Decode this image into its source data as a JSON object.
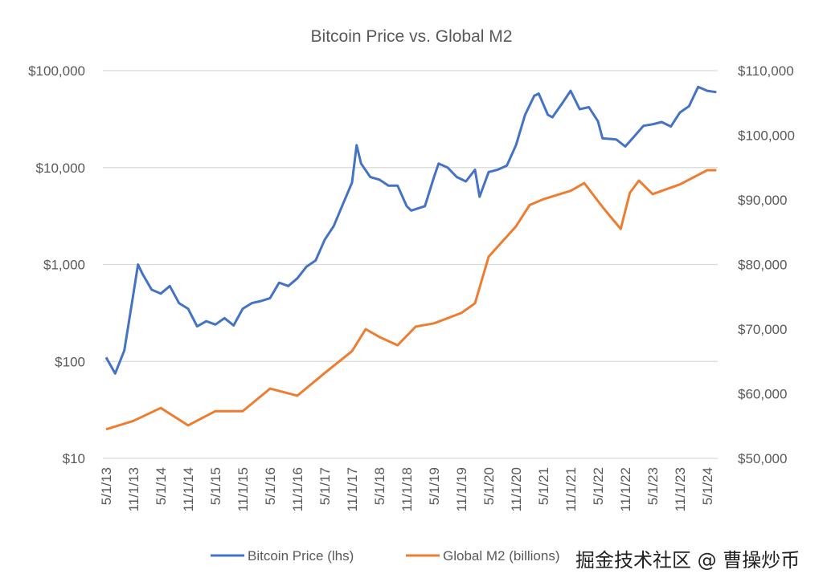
{
  "chart_data": {
    "type": "line",
    "title": "Bitcoin Price vs. Global M2",
    "y_left": {
      "scale": "log",
      "range": [
        10,
        100000
      ],
      "ticks": [
        "$10",
        "$100",
        "$1,000",
        "$10,000",
        "$100,000"
      ],
      "tick_values": [
        10,
        100,
        1000,
        10000,
        100000
      ]
    },
    "y_right": {
      "scale": "linear",
      "range": [
        50000,
        110000
      ],
      "ticks": [
        "$50,000",
        "$60,000",
        "$70,000",
        "$80,000",
        "$90,000",
        "$100,000",
        "$110,000"
      ],
      "tick_values": [
        50000,
        60000,
        70000,
        80000,
        90000,
        100000,
        110000
      ]
    },
    "x_ticks": [
      "5/1/13",
      "11/1/13",
      "5/1/14",
      "11/1/14",
      "5/1/15",
      "11/1/15",
      "5/1/16",
      "11/1/16",
      "5/1/17",
      "11/1/17",
      "5/1/18",
      "11/1/18",
      "5/1/19",
      "11/1/19",
      "5/1/20",
      "11/1/20",
      "5/1/21",
      "11/1/21",
      "5/1/22",
      "11/1/22",
      "5/1/23",
      "11/1/23",
      "5/1/24"
    ],
    "grid": "horizontal",
    "legend": "bottom",
    "series": [
      {
        "name": "Bitcoin Price (lhs)",
        "axis": "left",
        "color": "#4472C4",
        "x": [
          "2013-05",
          "2013-07",
          "2013-09",
          "2013-11",
          "2013-12",
          "2014-01",
          "2014-03",
          "2014-05",
          "2014-07",
          "2014-09",
          "2014-11",
          "2015-01",
          "2015-03",
          "2015-05",
          "2015-07",
          "2015-09",
          "2015-11",
          "2016-01",
          "2016-03",
          "2016-05",
          "2016-07",
          "2016-09",
          "2016-11",
          "2017-01",
          "2017-03",
          "2017-05",
          "2017-07",
          "2017-09",
          "2017-11",
          "2017-12",
          "2018-01",
          "2018-03",
          "2018-05",
          "2018-07",
          "2018-09",
          "2018-11",
          "2018-12",
          "2019-03",
          "2019-05",
          "2019-06",
          "2019-08",
          "2019-10",
          "2019-12",
          "2020-02",
          "2020-03",
          "2020-05",
          "2020-07",
          "2020-09",
          "2020-11",
          "2021-01",
          "2021-03",
          "2021-04",
          "2021-06",
          "2021-07",
          "2021-09",
          "2021-11",
          "2022-01",
          "2022-03",
          "2022-05",
          "2022-06",
          "2022-09",
          "2022-11",
          "2023-01",
          "2023-03",
          "2023-05",
          "2023-07",
          "2023-09",
          "2023-11",
          "2024-01",
          "2024-03",
          "2024-05",
          "2024-07"
        ],
        "values": [
          110,
          75,
          130,
          500,
          1000,
          800,
          550,
          500,
          600,
          400,
          350,
          230,
          260,
          240,
          280,
          235,
          350,
          400,
          420,
          450,
          650,
          600,
          720,
          950,
          1100,
          1800,
          2500,
          4200,
          7000,
          17000,
          11000,
          8000,
          7500,
          6500,
          6500,
          4000,
          3600,
          4000,
          8000,
          11000,
          10000,
          8000,
          7200,
          9500,
          5000,
          9000,
          9500,
          10500,
          17000,
          35000,
          55000,
          58000,
          35000,
          33000,
          45000,
          62000,
          40000,
          42000,
          30000,
          20000,
          19500,
          16500,
          21000,
          27000,
          28000,
          29500,
          26500,
          37000,
          43000,
          68000,
          62000,
          60000
        ]
      },
      {
        "name": "Global M2 (billions)",
        "axis": "right",
        "color": "#ED7D31",
        "x": [
          "2013-05",
          "2013-11",
          "2014-05",
          "2014-11",
          "2015-05",
          "2015-11",
          "2016-05",
          "2016-11",
          "2017-05",
          "2017-11",
          "2018-02",
          "2018-05",
          "2018-09",
          "2019-01",
          "2019-05",
          "2019-11",
          "2020-02",
          "2020-05",
          "2020-11",
          "2021-02",
          "2021-05",
          "2021-11",
          "2022-02",
          "2022-06",
          "2022-10",
          "2022-12",
          "2023-02",
          "2023-05",
          "2023-11",
          "2024-05",
          "2024-07"
        ],
        "values": [
          54500,
          55800,
          57800,
          55100,
          57300,
          57300,
          60800,
          59700,
          63200,
          66600,
          70000,
          68800,
          67500,
          70400,
          70900,
          72500,
          74000,
          81200,
          85900,
          89200,
          90100,
          91400,
          92600,
          88900,
          85500,
          91100,
          93000,
          90900,
          92400,
          94600,
          94600
        ]
      }
    ]
  },
  "watermark": "掘金技术社区 @ 曹操炒币"
}
